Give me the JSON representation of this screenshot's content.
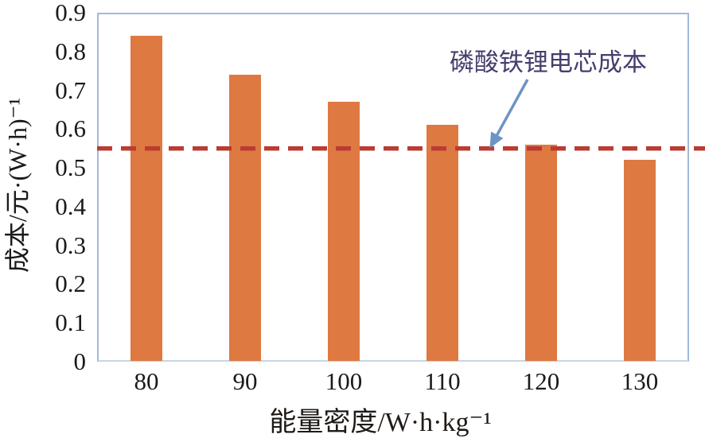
{
  "chart_data": {
    "type": "bar",
    "title": "",
    "categories": [
      "80",
      "90",
      "100",
      "110",
      "120",
      "130"
    ],
    "values": [
      0.84,
      0.74,
      0.67,
      0.61,
      0.56,
      0.52
    ],
    "xlabel": "能量密度/W·h·kg⁻¹",
    "ylabel": "成本/元·(W·h)⁻¹",
    "ylim": [
      0,
      0.9
    ],
    "ytick_labels": [
      "0",
      "0.1",
      "0.2",
      "0.3",
      "0.4",
      "0.5",
      "0.6",
      "0.7",
      "0.8",
      "0.9"
    ],
    "grid": false,
    "legend": "none",
    "bar_color": "#DE7942",
    "frame_color": "#9FB9DA",
    "reference_line": {
      "value": 0.55,
      "style": "dashed",
      "color": "#B93C32"
    },
    "annotation": {
      "text": "磷酸铁锂电芯成本",
      "color": "#453E6E",
      "arrow_color": "#6D94C5",
      "points_to": "reference-line"
    }
  }
}
